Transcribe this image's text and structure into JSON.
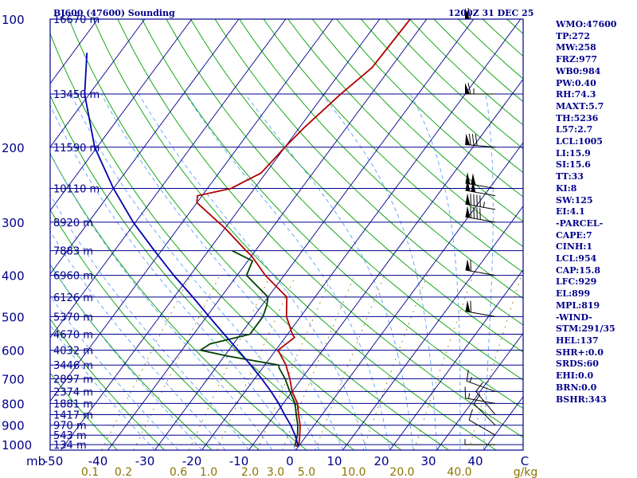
{
  "header": {
    "station": "BJ600 (47600) Sounding",
    "time": "1200Z 31 DEC 25"
  },
  "indices": [
    "WMO:47600",
    "TP:272",
    "MW:258",
    "FRZ:977",
    "WB0:984",
    "PW:0.40",
    "RH:74.3",
    "MAXT:5.7",
    "TH:5236",
    "L57:2.7",
    "LCL:1005",
    "LI:15.9",
    "SI:15.6",
    "TT:33",
    "KI:8",
    "SW:125",
    "EI:4.1",
    "-PARCEL-",
    "CAPE:7",
    "CINH:1",
    "LCL:954",
    "CAP:15.8",
    "LFC:929",
    "EL:899",
    "MPL:819",
    "-WIND-",
    "STM:291/35",
    "HEL:137",
    "SHR+:0.0",
    "SRDS:60",
    "EHI:0.0",
    "BRN:0.0",
    "BSHR:343"
  ],
  "colors": {
    "frame": "#00008b",
    "isobar": "#00008b",
    "isotherm": "#00008b",
    "dry_adiabat": "#00a000",
    "moist_adiabat": "#5aa0ff",
    "mixing_ratio": "#8b7500",
    "temperature": "#b00000",
    "dewpoint": "#004000",
    "parcel": "#0000b0",
    "wind": "#000000"
  },
  "chart_data": {
    "type": "line",
    "title": "BJ600 (47600) Sounding",
    "xlabel": "",
    "ylabel": "mb",
    "pressure_levels_mb": [
      100,
      200,
      300,
      400,
      500,
      600,
      700,
      800,
      900,
      1000
    ],
    "pressure_unit": "mb",
    "temperature_ticks_c": [
      "-50",
      "-40",
      "-30",
      "-20",
      "-10",
      "0",
      "10",
      "20",
      "30",
      "40"
    ],
    "temperature_end_label": "C",
    "xlim_c": [
      -50,
      50
    ],
    "ylim_mb": [
      1030,
      100
    ],
    "mixing_ratio_ticks": [
      "0.1",
      "0.2",
      "0.6",
      "1.0",
      "2.0",
      "3.0",
      "5.0",
      "10.0",
      "20.0",
      "40.0"
    ],
    "mixing_ratio_unit": "g/kg",
    "height_labels": [
      {
        "p": 100,
        "label": "16670 m"
      },
      {
        "p": 150,
        "label": "13450 m"
      },
      {
        "p": 200,
        "label": "11590 m"
      },
      {
        "p": 250,
        "label": "10110 m"
      },
      {
        "p": 300,
        "label": "8920 m"
      },
      {
        "p": 350,
        "label": "7883 m"
      },
      {
        "p": 400,
        "label": "6960 m"
      },
      {
        "p": 450,
        "label": "6126 m"
      },
      {
        "p": 500,
        "label": "5370 m"
      },
      {
        "p": 550,
        "label": "4670 m"
      },
      {
        "p": 600,
        "label": "4032 m"
      },
      {
        "p": 650,
        "label": "3446 m"
      },
      {
        "p": 700,
        "label": "2897 m"
      },
      {
        "p": 750,
        "label": "2374 m"
      },
      {
        "p": 800,
        "label": "1881 m"
      },
      {
        "p": 850,
        "label": "1417 m"
      },
      {
        "p": 900,
        "label": "970 m"
      },
      {
        "p": 950,
        "label": "543 m"
      },
      {
        "p": 1000,
        "label": "134 m"
      }
    ],
    "series": [
      {
        "points": [
          [
            1010,
            -0.5
          ],
          [
            1000,
            -0.2
          ],
          [
            950,
            -1.5
          ],
          [
            900,
            -3.0
          ],
          [
            850,
            -5.0
          ],
          [
            800,
            -7.0
          ],
          [
            750,
            -10.0
          ],
          [
            700,
            -12.5
          ],
          [
            650,
            -15.5
          ],
          [
            600,
            -19.5
          ],
          [
            560,
            -18.0
          ],
          [
            550,
            -19.0
          ],
          [
            500,
            -23.0
          ],
          [
            450,
            -26.0
          ],
          [
            400,
            -34.0
          ],
          [
            360,
            -40.0
          ],
          [
            350,
            -42.0
          ],
          [
            310,
            -50.0
          ],
          [
            270,
            -60.0
          ],
          [
            260,
            -61.0
          ],
          [
            250,
            -55.0
          ],
          [
            230,
            -51.0
          ],
          [
            200,
            -50.0
          ],
          [
            180,
            -49.0
          ],
          [
            150,
            -46.5
          ],
          [
            130,
            -44.0
          ],
          [
            100,
            -43.5
          ]
        ]
      },
      {
        "points": [
          [
            1010,
            -0.8
          ],
          [
            1000,
            -1.0
          ],
          [
            950,
            -2.0
          ],
          [
            900,
            -3.5
          ],
          [
            850,
            -5.5
          ],
          [
            800,
            -7.5
          ],
          [
            750,
            -10.5
          ],
          [
            700,
            -13.5
          ],
          [
            660,
            -16.5
          ],
          [
            650,
            -17.0
          ],
          [
            620,
            -29.0
          ],
          [
            600,
            -36.0
          ],
          [
            580,
            -35.0
          ],
          [
            550,
            -28.0
          ],
          [
            500,
            -28.0
          ],
          [
            470,
            -29.0
          ],
          [
            450,
            -30.0
          ],
          [
            400,
            -38.0
          ],
          [
            370,
            -39.0
          ],
          [
            350,
            -45.0
          ]
        ]
      },
      {
        "points": [
          [
            1010,
            0.0
          ],
          [
            950,
            -2.5
          ],
          [
            900,
            -5.0
          ],
          [
            850,
            -8.0
          ],
          [
            800,
            -11.0
          ],
          [
            750,
            -14.5
          ],
          [
            700,
            -18.5
          ],
          [
            650,
            -23.0
          ],
          [
            600,
            -28.0
          ],
          [
            550,
            -33.5
          ],
          [
            500,
            -39.5
          ],
          [
            450,
            -46.0
          ],
          [
            400,
            -53.5
          ],
          [
            350,
            -61.5
          ],
          [
            300,
            -70.5
          ],
          [
            250,
            -80.0
          ],
          [
            200,
            -90.5
          ],
          [
            150,
            -101.0
          ],
          [
            120,
            -107.0
          ]
        ]
      }
    ],
    "wind_barbs": [
      {
        "p": 1000,
        "dir": 270,
        "spd": 5
      },
      {
        "p": 950,
        "dir": 300,
        "spd": 10
      },
      {
        "p": 900,
        "dir": 315,
        "spd": 10
      },
      {
        "p": 850,
        "dir": 320,
        "spd": 10
      },
      {
        "p": 800,
        "dir": 280,
        "spd": 15
      },
      {
        "p": 750,
        "dir": 290,
        "spd": 15
      },
      {
        "p": 500,
        "dir": 280,
        "spd": 60
      },
      {
        "p": 400,
        "dir": 280,
        "spd": 60
      },
      {
        "p": 300,
        "dir": 280,
        "spd": 90
      },
      {
        "p": 280,
        "dir": 280,
        "spd": 95
      },
      {
        "p": 260,
        "dir": 280,
        "spd": 100
      },
      {
        "p": 250,
        "dir": 280,
        "spd": 100
      },
      {
        "p": 200,
        "dir": 275,
        "spd": 80
      },
      {
        "p": 150,
        "dir": 270,
        "spd": 65
      },
      {
        "p": 100,
        "dir": 270,
        "spd": 60
      }
    ],
    "grid": true,
    "legend": "none"
  }
}
